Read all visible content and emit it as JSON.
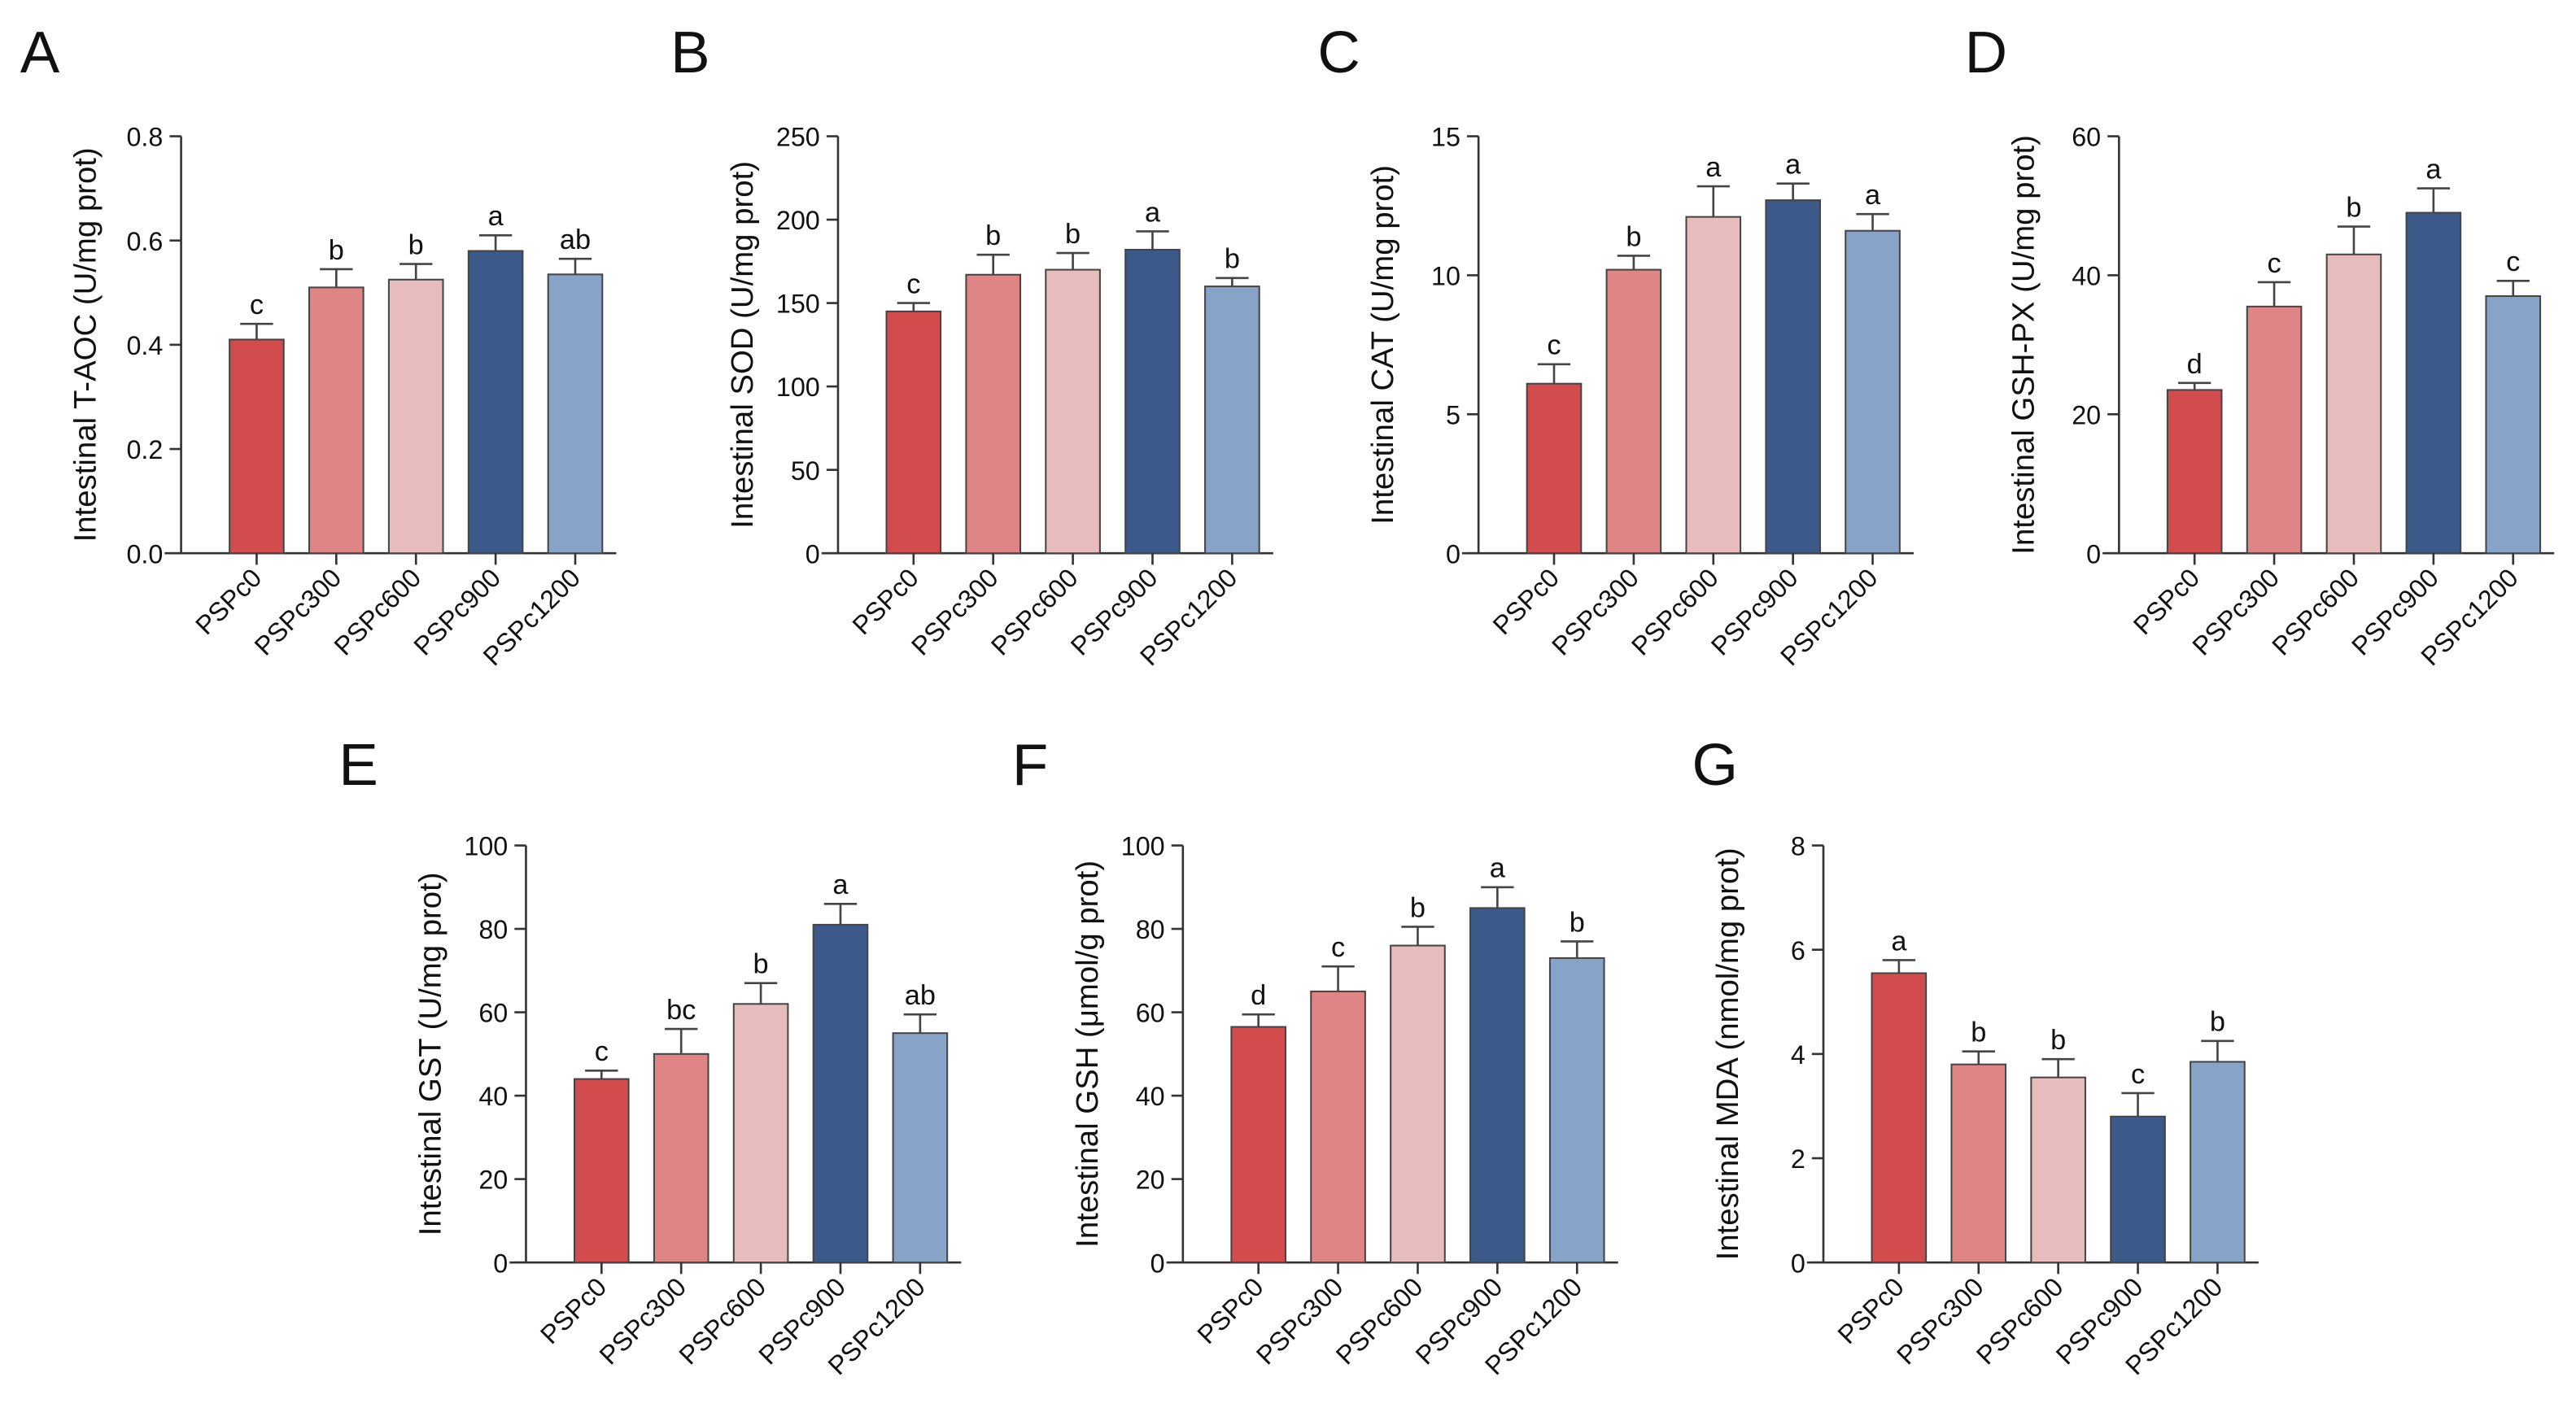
{
  "colors": [
    "#d24b4d",
    "#e08585",
    "#e6bcbc",
    "#3c5a89",
    "#88a3c8"
  ],
  "chart_data": [
    {
      "panel": "A",
      "type": "bar",
      "ylabel": "Intestinal T-AOC (U/mg prot)",
      "ylim": [
        0,
        0.8
      ],
      "yticks": [
        "0.0",
        "0.2",
        "0.4",
        "0.6",
        "0.8"
      ],
      "categories": [
        "PSPc0",
        "PSPc300",
        "PSPc600",
        "PSPc900",
        "PSPc1200"
      ],
      "values": [
        0.41,
        0.51,
        0.525,
        0.58,
        0.535
      ],
      "errors": [
        0.03,
        0.035,
        0.03,
        0.03,
        0.03
      ],
      "letters": [
        "c",
        "b",
        "b",
        "a",
        "ab"
      ]
    },
    {
      "panel": "B",
      "type": "bar",
      "ylabel": "Intestinal SOD (U/mg prot)",
      "ylim": [
        0,
        250
      ],
      "yticks": [
        "0",
        "50",
        "100",
        "150",
        "200",
        "250"
      ],
      "categories": [
        "PSPc0",
        "PSPc300",
        "PSPc600",
        "PSPc900",
        "PSPc1200"
      ],
      "values": [
        145,
        167,
        170,
        182,
        160
      ],
      "errors": [
        5,
        12,
        10,
        11,
        5
      ],
      "letters": [
        "c",
        "b",
        "b",
        "a",
        "b"
      ]
    },
    {
      "panel": "C",
      "type": "bar",
      "ylabel": "Intestinal CAT (U/mg prot)",
      "ylim": [
        0,
        15
      ],
      "yticks": [
        "0",
        "5",
        "10",
        "15"
      ],
      "categories": [
        "PSPc0",
        "PSPc300",
        "PSPc600",
        "PSPc900",
        "PSPc1200"
      ],
      "values": [
        6.1,
        10.2,
        12.1,
        12.7,
        11.6
      ],
      "errors": [
        0.7,
        0.5,
        1.1,
        0.6,
        0.6
      ],
      "letters": [
        "c",
        "b",
        "a",
        "a",
        "a"
      ]
    },
    {
      "panel": "D",
      "type": "bar",
      "ylabel": "Intestinal GSH-PX (U/mg prot)",
      "ylim": [
        0,
        60
      ],
      "yticks": [
        "0",
        "20",
        "40",
        "60"
      ],
      "categories": [
        "PSPc0",
        "PSPc300",
        "PSPc600",
        "PSPc900",
        "PSPc1200"
      ],
      "values": [
        23.5,
        35.5,
        43,
        49,
        37
      ],
      "errors": [
        1,
        3.5,
        4,
        3.5,
        2.2
      ],
      "letters": [
        "d",
        "c",
        "b",
        "a",
        "c"
      ]
    },
    {
      "panel": "E",
      "type": "bar",
      "ylabel": "Intestinal GST (U/mg prot)",
      "ylim": [
        0,
        100
      ],
      "yticks": [
        "0",
        "20",
        "40",
        "60",
        "80",
        "100"
      ],
      "categories": [
        "PSPc0",
        "PSPc300",
        "PSPc600",
        "PSPc900",
        "PSPc1200"
      ],
      "values": [
        44,
        50,
        62,
        81,
        55
      ],
      "errors": [
        2,
        6,
        5,
        5,
        4.5
      ],
      "letters": [
        "c",
        "bc",
        "b",
        "a",
        "ab"
      ]
    },
    {
      "panel": "F",
      "type": "bar",
      "ylabel": "Intestinal GSH (μmol/g prot)",
      "ylim": [
        0,
        100
      ],
      "yticks": [
        "0",
        "20",
        "40",
        "60",
        "80",
        "100"
      ],
      "categories": [
        "PSPc0",
        "PSPc300",
        "PSPc600",
        "PSPc900",
        "PSPc1200"
      ],
      "values": [
        56.5,
        65,
        76,
        85,
        73
      ],
      "errors": [
        3,
        6,
        4.5,
        5,
        4
      ],
      "letters": [
        "d",
        "c",
        "b",
        "a",
        "b"
      ]
    },
    {
      "panel": "G",
      "type": "bar",
      "ylabel": "Intestinal MDA (nmol/mg prot)",
      "ylim": [
        0,
        8
      ],
      "yticks": [
        "0",
        "2",
        "4",
        "6",
        "8"
      ],
      "categories": [
        "PSPc0",
        "PSPc300",
        "PSPc600",
        "PSPc900",
        "PSPc1200"
      ],
      "values": [
        5.55,
        3.8,
        3.55,
        2.8,
        3.85
      ],
      "errors": [
        0.25,
        0.25,
        0.35,
        0.45,
        0.4
      ],
      "letters": [
        "a",
        "b",
        "b",
        "c",
        "b"
      ]
    }
  ]
}
